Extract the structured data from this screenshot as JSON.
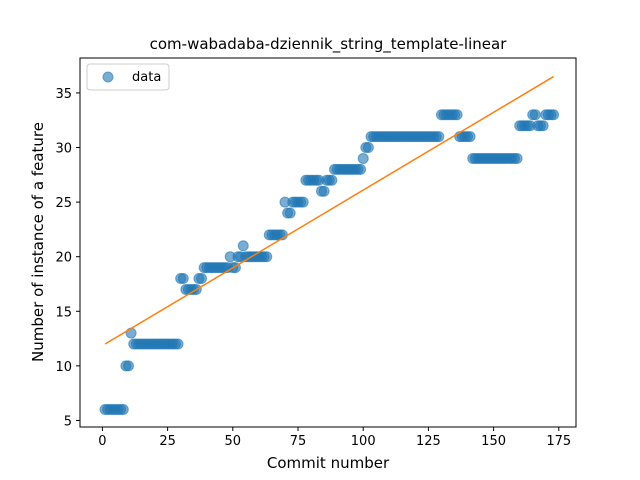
{
  "chart_data": {
    "type": "scatter",
    "title": "com-wabadaba-dziennik_string_template-linear",
    "xlabel": "Commit number",
    "ylabel": "Number of instance of a feature",
    "xlim": [
      -8.6,
      181.6
    ],
    "ylim": [
      4.4,
      38.2
    ],
    "xticks": [
      0,
      25,
      50,
      75,
      100,
      125,
      150,
      175
    ],
    "yticks": [
      5,
      10,
      15,
      20,
      25,
      30,
      35
    ],
    "grid": false,
    "legend": {
      "placement": "top-left",
      "entries": [
        "data"
      ]
    },
    "colors": {
      "points": "#1f77b4",
      "fit": "#ff7f0e"
    },
    "series": [
      {
        "name": "data",
        "kind": "scatter",
        "x": [
          1,
          2,
          3,
          4,
          5,
          6,
          7,
          8,
          9,
          10,
          11,
          12,
          13,
          14,
          15,
          16,
          17,
          18,
          19,
          20,
          21,
          22,
          23,
          24,
          25,
          26,
          27,
          28,
          29,
          30,
          31,
          32,
          33,
          34,
          35,
          36,
          37,
          38,
          39,
          40,
          41,
          42,
          43,
          44,
          45,
          46,
          47,
          48,
          49,
          50,
          51,
          52,
          53,
          54,
          55,
          56,
          57,
          58,
          59,
          60,
          61,
          62,
          63,
          64,
          65,
          66,
          67,
          68,
          69,
          70,
          71,
          72,
          73,
          74,
          75,
          76,
          77,
          78,
          79,
          80,
          81,
          82,
          83,
          84,
          85,
          86,
          87,
          88,
          89,
          90,
          91,
          92,
          93,
          94,
          95,
          96,
          97,
          98,
          99,
          100,
          101,
          102,
          103,
          104,
          105,
          106,
          107,
          108,
          109,
          110,
          111,
          112,
          113,
          114,
          115,
          116,
          117,
          118,
          119,
          120,
          121,
          122,
          123,
          124,
          125,
          126,
          127,
          128,
          129,
          130,
          131,
          132,
          133,
          134,
          135,
          136,
          137,
          138,
          139,
          140,
          141,
          142,
          143,
          144,
          145,
          146,
          147,
          148,
          149,
          150,
          151,
          152,
          153,
          154,
          155,
          156,
          157,
          158,
          159,
          160,
          161,
          162,
          163,
          164,
          165,
          166,
          167,
          168,
          169,
          170,
          171,
          172,
          173
        ],
        "y": [
          6,
          6,
          6,
          6,
          6,
          6,
          6,
          6,
          10,
          10,
          13,
          12,
          12,
          12,
          12,
          12,
          12,
          12,
          12,
          12,
          12,
          12,
          12,
          12,
          12,
          12,
          12,
          12,
          12,
          18,
          18,
          17,
          17,
          17,
          17,
          17,
          18,
          18,
          19,
          19,
          19,
          19,
          19,
          19,
          19,
          19,
          19,
          19,
          20,
          19,
          19,
          20,
          20,
          21,
          20,
          20,
          20,
          20,
          20,
          20,
          20,
          20,
          20,
          22,
          22,
          22,
          22,
          22,
          22,
          25,
          24,
          24,
          25,
          25,
          25,
          25,
          25,
          27,
          27,
          27,
          27,
          27,
          27,
          26,
          26,
          27,
          27,
          27,
          28,
          28,
          28,
          28,
          28,
          28,
          28,
          28,
          28,
          28,
          28,
          29,
          30,
          30,
          31,
          31,
          31,
          31,
          31,
          31,
          31,
          31,
          31,
          31,
          31,
          31,
          31,
          31,
          31,
          31,
          31,
          31,
          31,
          31,
          31,
          31,
          31,
          31,
          31,
          31,
          31,
          33,
          33,
          33,
          33,
          33,
          33,
          33,
          31,
          31,
          31,
          31,
          31,
          29,
          29,
          29,
          29,
          29,
          29,
          29,
          29,
          29,
          29,
          29,
          29,
          29,
          29,
          29,
          29,
          29,
          29,
          32,
          32,
          32,
          32,
          32,
          33,
          33,
          32,
          32,
          32,
          33,
          33,
          33,
          33
        ]
      },
      {
        "name": "",
        "kind": "line",
        "x": [
          1,
          173
        ],
        "y": [
          12.0,
          36.5
        ]
      }
    ]
  }
}
